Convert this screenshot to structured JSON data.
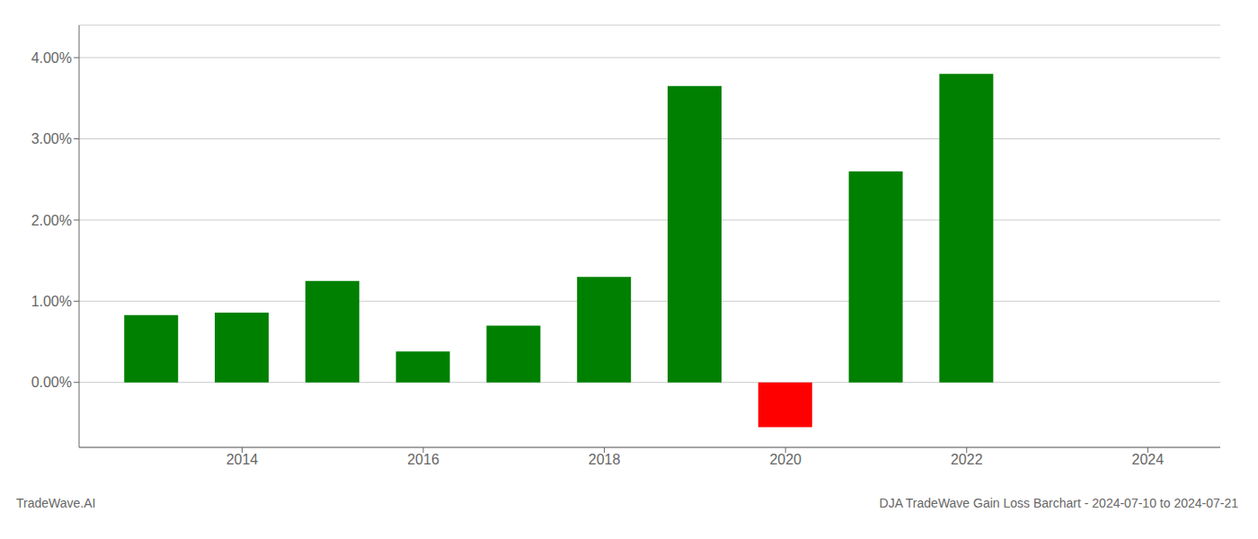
{
  "chart_data": {
    "type": "bar",
    "x": [
      2013,
      2014,
      2015,
      2016,
      2017,
      2018,
      2019,
      2020,
      2021,
      2022
    ],
    "values": [
      0.0083,
      0.0086,
      0.0125,
      0.0038,
      0.007,
      0.013,
      0.0365,
      -0.0055,
      0.026,
      0.038
    ],
    "colors": [
      "#008000",
      "#008000",
      "#008000",
      "#008000",
      "#008000",
      "#008000",
      "#008000",
      "#ff0000",
      "#008000",
      "#008000"
    ],
    "xlim": [
      2012.2,
      2024.8
    ],
    "xticks": [
      2014,
      2016,
      2018,
      2020,
      2022,
      2024
    ],
    "ylim": [
      -0.008,
      0.044
    ],
    "yticks": [
      {
        "value": 0.0,
        "label": "0.00%"
      },
      {
        "value": 0.01,
        "label": "1.00%"
      },
      {
        "value": 0.02,
        "label": "2.00%"
      },
      {
        "value": 0.03,
        "label": "3.00%"
      },
      {
        "value": 0.04,
        "label": "4.00%"
      }
    ],
    "grid": true,
    "annotations": [
      "TradeWave.AI",
      "DJA TradeWave Gain Loss Barchart - 2024-07-10 to 2024-07-21"
    ]
  }
}
